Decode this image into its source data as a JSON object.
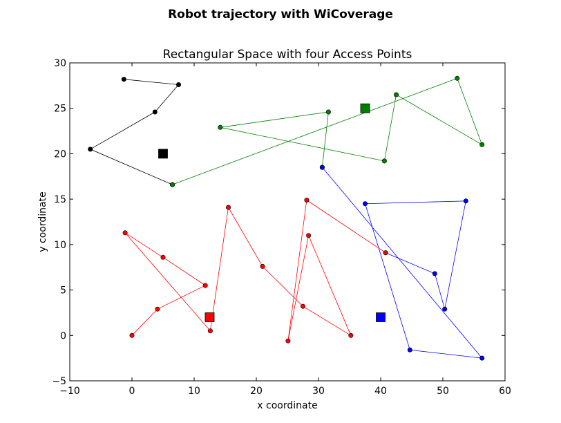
{
  "chart_data": {
    "type": "scatter",
    "suptitle": "Robot trajectory with WiCoverage",
    "title": "Rectangular Space with four Access Points",
    "xlabel": "x coordinate",
    "ylabel": "y coordinate",
    "xlim": [
      -10,
      60
    ],
    "ylim": [
      -5,
      30
    ],
    "xticks": [
      -10,
      0,
      10,
      20,
      30,
      40,
      50,
      60
    ],
    "yticks": [
      -5,
      0,
      5,
      10,
      15,
      20,
      25,
      30
    ],
    "xtick_labels": [
      "−10",
      "0",
      "10",
      "20",
      "30",
      "40",
      "50",
      "60"
    ],
    "ytick_labels": [
      "−5",
      "0",
      "5",
      "10",
      "15",
      "20",
      "25",
      "30"
    ],
    "grid": false,
    "access_points": [
      {
        "color": "#000000",
        "x": 5.0,
        "y": 20.0
      },
      {
        "color": "#008000",
        "x": 37.5,
        "y": 25.0
      },
      {
        "color": "#ff0000",
        "x": 12.5,
        "y": 2.0
      },
      {
        "color": "#0000ff",
        "x": 40.0,
        "y": 2.0
      }
    ],
    "series": [
      {
        "color": "#000000",
        "x": [
          -1.3,
          7.5,
          3.7,
          -6.7,
          6.5
        ],
        "y": [
          28.2,
          27.6,
          24.6,
          20.5,
          16.6
        ]
      },
      {
        "color": "#008000",
        "x": [
          6.5,
          52.3,
          56.3,
          42.5,
          40.6,
          14.2,
          31.6,
          30.6
        ],
        "y": [
          16.6,
          28.3,
          21.0,
          26.5,
          19.2,
          22.9,
          24.6,
          18.5
        ]
      },
      {
        "color": "#0000ff",
        "x": [
          30.6,
          56.3,
          44.7,
          37.5,
          53.7,
          50.3,
          48.7,
          40.8
        ],
        "y": [
          18.5,
          -2.5,
          -1.6,
          14.5,
          14.8,
          2.9,
          6.8,
          9.1
        ]
      },
      {
        "color": "#ff0000",
        "x": [
          40.8,
          28.1,
          25.1,
          28.4,
          35.2,
          27.5,
          21.0,
          15.5,
          12.6,
          -1.1,
          5.0,
          11.8,
          4.1,
          0.0
        ],
        "y": [
          9.1,
          14.9,
          -0.6,
          11.0,
          0.0,
          3.2,
          7.6,
          14.1,
          0.5,
          11.3,
          8.6,
          5.5,
          2.9,
          0.0
        ]
      }
    ]
  }
}
